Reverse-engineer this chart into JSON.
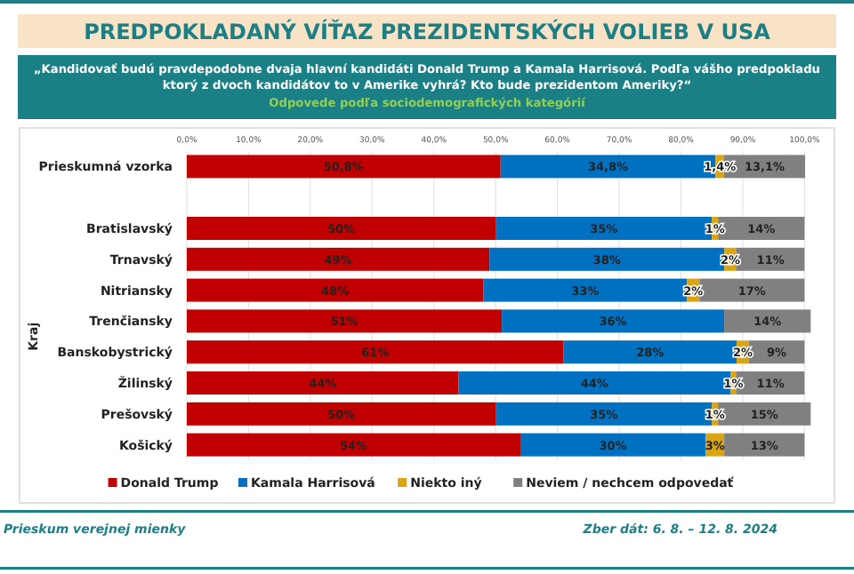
{
  "chart_data": {
    "type": "bar",
    "orientation": "horizontal",
    "stacked": true,
    "title": "PREDPOKLADANÝ VÍŤAZ PREZIDENTSKÝCH VOLIEB V USA",
    "subtitle": "„Kandidovať budú pravdepodobne dvaja hlavní kandidáti Donald Trump a Kamala Harrisová. Podľa vášho predpokladu ktorý z dvoch kandidátov to v Amerike vyhrá? Kto bude prezidentom Ameriky?“",
    "annotations": [
      "Odpovede podľa sociodemografických kategórií",
      "Prieskum verejnej mienky",
      "Zber dát: 6. 8. – 12. 8. 2024"
    ],
    "ylabel": "Kraj",
    "categories": [
      "Prieskumná vzorka",
      null,
      "Bratislavský",
      "Trnavský",
      "Nitriansky",
      "Trenčiansky",
      "Banskobystrický",
      "Žilinský",
      "Prešovský",
      "Košický"
    ],
    "series": [
      {
        "name": "Donald Trump",
        "color": "#c00000",
        "values": [
          50.8,
          null,
          50,
          49,
          48,
          51,
          61,
          44,
          50,
          54
        ],
        "value_labels": [
          "50,8%",
          null,
          "50%",
          "49%",
          "48%",
          "51%",
          "61%",
          "44%",
          "50%",
          "54%"
        ]
      },
      {
        "name": "Kamala Harrisová",
        "color": "#0070c0",
        "values": [
          34.8,
          null,
          35,
          38,
          33,
          36,
          28,
          44,
          35,
          30
        ],
        "value_labels": [
          "34,8%",
          null,
          "35%",
          "38%",
          "33%",
          "36%",
          "28%",
          "44%",
          "35%",
          "30%"
        ]
      },
      {
        "name": "Niekto iný",
        "color": "#d9a514",
        "values": [
          1.4,
          null,
          1,
          2,
          2,
          0,
          2,
          1,
          1,
          3
        ],
        "value_labels": [
          "1,4%",
          null,
          "1%",
          "2%",
          "2%",
          null,
          "2%",
          "1%",
          "1%",
          "3%"
        ]
      },
      {
        "name": "Neviem / nechcem odpovedať",
        "color": "#808080",
        "values": [
          13.1,
          null,
          14,
          11,
          17,
          14,
          9,
          11,
          15,
          13
        ],
        "value_labels": [
          "13,1%",
          null,
          "14%",
          "11%",
          "17%",
          "14%",
          "9%",
          "11%",
          "15%",
          "13%"
        ]
      }
    ],
    "xlim": [
      0,
      101.1
    ],
    "xticks": [
      {
        "value": 0,
        "label": "0,0%"
      },
      {
        "value": 10,
        "label": "10,0%"
      },
      {
        "value": 20,
        "label": "20,0%"
      },
      {
        "value": 30,
        "label": "30,0%"
      },
      {
        "value": 40,
        "label": "40,0%"
      },
      {
        "value": 50,
        "label": "50,0%"
      },
      {
        "value": 60,
        "label": "60,0%"
      },
      {
        "value": 70,
        "label": "70,0%"
      },
      {
        "value": 80,
        "label": "80,0%"
      },
      {
        "value": 90,
        "label": "90,0%"
      },
      {
        "value": 100,
        "label": "100,0%"
      }
    ],
    "grid": "x",
    "legend": "bottom"
  }
}
